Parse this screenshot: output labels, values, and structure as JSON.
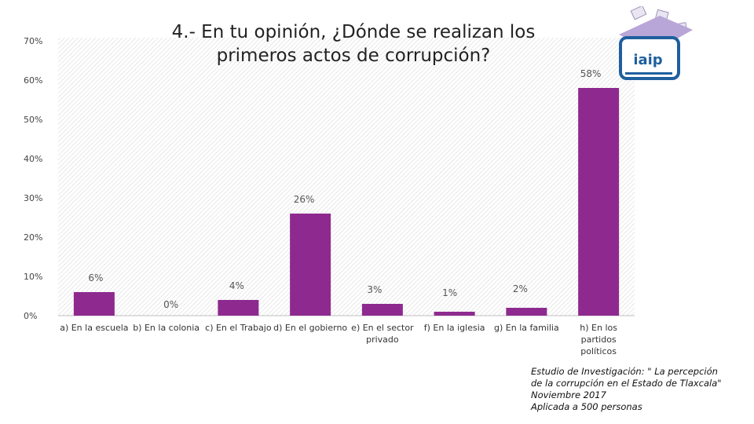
{
  "chart_data": {
    "type": "bar",
    "title": [
      "4.- En tu opinión, ¿Dónde se realizan los",
      "primeros actos de corrupción?"
    ],
    "categories": [
      "a) En la escuela",
      "b) En la colonia",
      "c) En el Trabajo",
      "d) En el gobierno",
      "e) En el sector privado",
      "f) En la iglesia",
      "g) En la familia",
      "h) En los partidos políticos"
    ],
    "category_lines": [
      [
        "a) En la escuela"
      ],
      [
        "b) En la colonia"
      ],
      [
        "c) En el Trabajo"
      ],
      [
        "d) En el gobierno"
      ],
      [
        "e) En el sector",
        "privado"
      ],
      [
        "f) En la iglesia"
      ],
      [
        "g) En la familia"
      ],
      [
        "h) En los",
        "partidos",
        "políticos"
      ]
    ],
    "values": [
      6,
      0,
      4,
      26,
      3,
      1,
      2,
      58
    ],
    "data_labels": [
      "6%",
      "0%",
      "4%",
      "26%",
      "3%",
      "1%",
      "2%",
      "58%"
    ],
    "yticks": [
      0,
      10,
      20,
      30,
      40,
      50,
      60,
      70
    ],
    "ytick_labels": [
      "0%",
      "10%",
      "20%",
      "30%",
      "40%",
      "50%",
      "60%",
      "70%"
    ],
    "ylim": [
      0,
      70
    ],
    "xlabel": "",
    "ylabel": "",
    "grid": false,
    "bar_color": "#8e2a8f"
  },
  "logo": {
    "text": "iaip",
    "colors": {
      "blue": "#1f5f9e",
      "lavender": "#b9a6d8"
    }
  },
  "footnote": [
    "Estudio de Investigación:  \" La percepción",
    "de la corrupción en el Estado de Tlaxcala\"",
    "Noviembre 2017",
    "Aplicada a 500 personas"
  ]
}
